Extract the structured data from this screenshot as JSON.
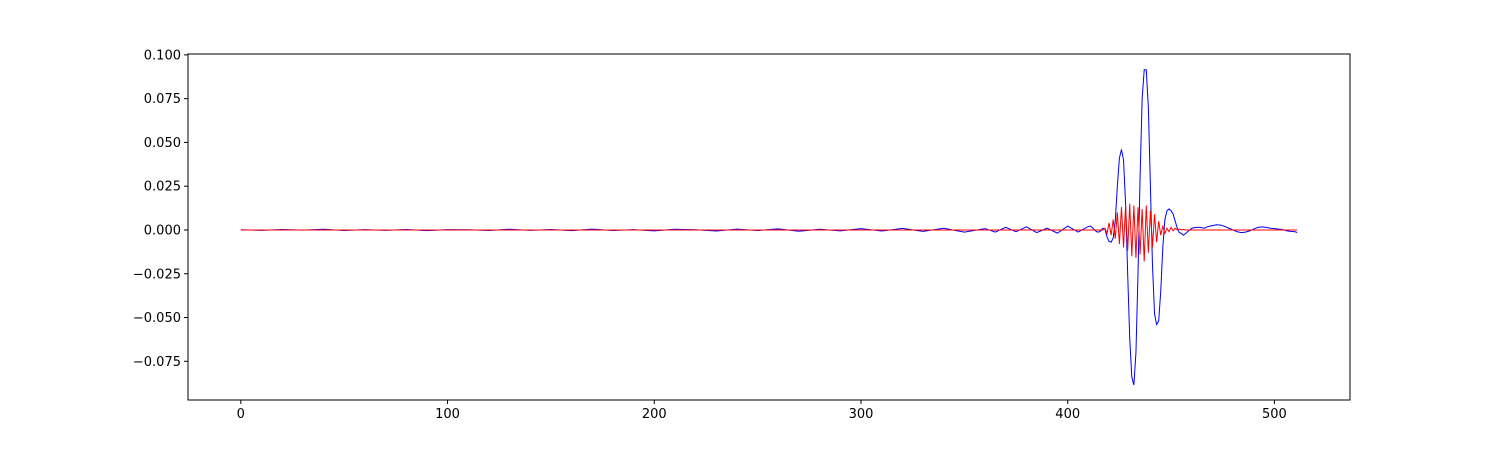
{
  "chart_data": {
    "type": "line",
    "x": [
      0,
      10,
      20,
      30,
      40,
      50,
      60,
      70,
      80,
      90,
      100,
      110,
      120,
      130,
      140,
      150,
      160,
      170,
      180,
      190,
      200,
      210,
      220,
      230,
      240,
      250,
      260,
      270,
      280,
      290,
      300,
      310,
      320,
      330,
      340,
      350,
      360,
      365,
      370,
      375,
      380,
      385,
      390,
      395,
      400,
      405,
      410,
      411,
      412,
      413,
      414,
      415,
      416,
      417,
      418,
      419,
      420,
      421,
      422,
      423,
      424,
      425,
      426,
      427,
      428,
      429,
      430,
      431,
      432,
      433,
      434,
      435,
      436,
      437,
      438,
      439,
      440,
      441,
      442,
      443,
      444,
      445,
      446,
      447,
      448,
      449,
      450,
      451,
      452,
      453,
      454,
      455,
      456,
      457,
      458,
      459,
      460,
      462,
      464,
      466,
      468,
      470,
      472,
      474,
      476,
      478,
      480,
      482,
      484,
      486,
      488,
      490,
      492,
      494,
      496,
      498,
      500,
      502,
      504,
      506,
      508,
      510,
      511
    ],
    "series": [
      {
        "color": "#0000ff",
        "values": [
          0.0001,
          -0.0002,
          0.0003,
          -0.0001,
          0.0004,
          -0.0003,
          0.0002,
          -0.0002,
          0.0003,
          -0.0004,
          0.0002,
          0.0001,
          -0.0003,
          0.0004,
          -0.0002,
          0.0003,
          -0.0004,
          0.0005,
          -0.0003,
          0.0002,
          -0.0005,
          0.0004,
          0.0001,
          -0.0006,
          0.0005,
          -0.0003,
          0.0006,
          -0.0007,
          0.0004,
          -0.0005,
          0.0008,
          -0.0006,
          0.0009,
          -0.0008,
          0.001,
          -0.0012,
          0.0008,
          -0.0012,
          0.0015,
          -0.001,
          0.0018,
          -0.0015,
          0.001,
          -0.0018,
          0.0022,
          -0.0012,
          0.002,
          0.0022,
          0.0012,
          0,
          -0.001,
          -0.0012,
          -0.0005,
          0.001,
          0.0005,
          -0.004,
          -0.0065,
          -0.007,
          -0.0045,
          0.005,
          0.025,
          0.041,
          0.046,
          0.04,
          0.015,
          -0.025,
          -0.062,
          -0.084,
          -0.0885,
          -0.07,
          -0.025,
          0.03,
          0.075,
          0.0915,
          0.0915,
          0.07,
          0.025,
          -0.02,
          -0.048,
          -0.054,
          -0.052,
          -0.035,
          -0.01,
          0.006,
          0.011,
          0.012,
          0.011,
          0.009,
          0.005,
          0.001,
          -0.0015,
          -0.002,
          -0.003,
          -0.002,
          -0.001,
          0,
          0.001,
          0.0015,
          0.0015,
          0.001,
          0.002,
          0.0025,
          0.003,
          0.0028,
          0.002,
          0.001,
          0,
          -0.001,
          -0.0015,
          -0.0012,
          -0.0005,
          0.0005,
          0.0015,
          0.0018,
          0.0015,
          0.001,
          0.0008,
          0.0005,
          0.0002,
          -0.0005,
          -0.0008,
          -0.001,
          -0.0015
        ]
      },
      {
        "color": "#ff0000",
        "values": [
          0,
          0,
          0,
          0,
          0,
          0,
          0,
          0,
          0,
          0,
          0,
          0,
          0,
          0,
          0,
          0,
          0,
          0,
          0,
          0,
          0,
          0,
          0,
          0,
          0,
          0,
          0,
          0,
          0,
          0,
          0,
          0,
          0,
          0,
          0,
          0,
          0,
          0,
          0,
          0,
          0,
          0,
          0,
          0,
          0,
          0,
          0,
          0,
          0,
          0,
          0,
          0,
          0,
          0,
          0.001,
          -0.002,
          0.004,
          -0.003,
          0.006,
          -0.005,
          0.01,
          -0.008,
          0.013,
          -0.01,
          0.014,
          -0.012,
          0.015,
          -0.015,
          0.014,
          -0.016,
          0.013,
          -0.014,
          0.012,
          -0.018,
          0.014,
          -0.013,
          0.011,
          -0.01,
          0.009,
          -0.007,
          0.005,
          -0.003,
          0.002,
          -0.002,
          0.001,
          -0.001,
          0.0015,
          -0.0005,
          0.001,
          0,
          0.0005,
          0,
          0.0003,
          0,
          0,
          0,
          0,
          0,
          0,
          0,
          0,
          0,
          0,
          0,
          0,
          0,
          0,
          0,
          0,
          0,
          0,
          0,
          0,
          0,
          0,
          0,
          0,
          0,
          0,
          0,
          0,
          0,
          0
        ]
      }
    ],
    "xlim": [
      -25.55,
      536.55
    ],
    "xticks": [
      0,
      100,
      200,
      300,
      400,
      500
    ],
    "ylim": [
      -0.0971,
      0.1005
    ],
    "yticks": [
      {
        "value": -0.075,
        "label": "−0.075"
      },
      {
        "value": -0.05,
        "label": "−0.050"
      },
      {
        "value": -0.025,
        "label": "−0.025"
      },
      {
        "value": 0,
        "label": "0.000"
      },
      {
        "value": 0.025,
        "label": "0.025"
      },
      {
        "value": 0.05,
        "label": "0.050"
      },
      {
        "value": 0.075,
        "label": "0.075"
      },
      {
        "value": 0.1,
        "label": "0.100"
      }
    ]
  }
}
